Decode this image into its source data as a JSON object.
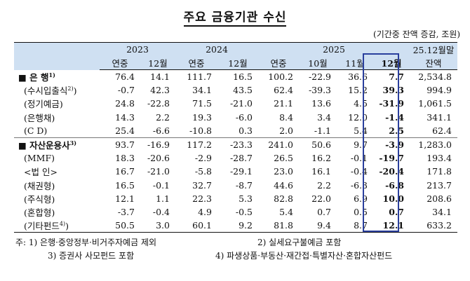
{
  "title": "주요 금융기관 수신",
  "unit": "(기간중 잔액 증감, 조원)",
  "header": {
    "years": [
      {
        "label": "2023",
        "span": 2
      },
      {
        "label": "2024",
        "span": 2
      },
      {
        "label": "2025",
        "span": 4
      },
      {
        "label": "25.12월말",
        "span": 1
      }
    ],
    "sub": [
      "연중",
      "12월",
      "연중",
      "12월",
      "연중",
      "10월",
      "11월",
      "12월",
      "잔액"
    ]
  },
  "rows": [
    {
      "label": "■ 은  행",
      "sup": "1)",
      "bold": true,
      "values": [
        "76.4",
        "14.1",
        "111.7",
        "16.5",
        "100.2",
        "-22.9",
        "36.6",
        "7.7",
        "2,534.8"
      ]
    },
    {
      "label": "(수시입출식",
      "sup": "2)",
      "suffix": ")",
      "values": [
        "-0.7",
        "42.3",
        "34.1",
        "43.5",
        "62.4",
        "-39.3",
        "15.2",
        "39.3",
        "994.9"
      ]
    },
    {
      "label": "(정기예금)",
      "values": [
        "24.8",
        "-22.8",
        "71.5",
        "-21.0",
        "21.1",
        "13.6",
        "4.5",
        "-31.9",
        "1,061.5"
      ]
    },
    {
      "label": "(은행채)",
      "values": [
        "14.3",
        "2.2",
        "19.3",
        "-6.0",
        "8.4",
        "3.4",
        "12.0",
        "-1.4",
        "341.1"
      ]
    },
    {
      "label": "(C  D)",
      "values": [
        "25.4",
        "-6.6",
        "-10.8",
        "0.3",
        "2.0",
        "-1.1",
        "5.4",
        "2.5",
        "62.4"
      ]
    },
    {
      "label": "■ 자산운용사",
      "sup": "3)",
      "bold": true,
      "values": [
        "93.7",
        "-16.9",
        "117.2",
        "-23.3",
        "241.0",
        "50.6",
        "9.7",
        "-3.9",
        "1,283.0"
      ]
    },
    {
      "label": "(MMF)",
      "values": [
        "18.3",
        "-20.6",
        "-2.9",
        "-28.7",
        "26.5",
        "16.2",
        "-0.1",
        "-19.7",
        "193.4"
      ]
    },
    {
      "label": " <법  인>",
      "values": [
        "16.7",
        "-21.0",
        "-5.8",
        "-29.1",
        "23.0",
        "16.1",
        "-0.4",
        "-20.4",
        "171.8"
      ]
    },
    {
      "label": "(채권형)",
      "values": [
        "16.5",
        "-0.1",
        "32.7",
        "-8.7",
        "44.6",
        "2.2",
        "-6.3",
        "-6.8",
        "213.7"
      ]
    },
    {
      "label": "(주식형)",
      "values": [
        "12.1",
        "1.1",
        "22.3",
        "5.3",
        "82.8",
        "22.0",
        "6.9",
        "10.0",
        "208.6"
      ]
    },
    {
      "label": "(혼합형)",
      "values": [
        "-3.7",
        "-0.4",
        "4.9",
        "-0.5",
        "5.4",
        "0.7",
        "0.5",
        "0.7",
        "34.1"
      ]
    },
    {
      "label": "(기타펀드",
      "sup": "4)",
      "suffix": ")",
      "values": [
        "50.5",
        "3.0",
        "60.1",
        "9.2",
        "81.8",
        "9.4",
        "8.7",
        "12.1",
        "633.2"
      ]
    }
  ],
  "notes": {
    "n1": "주: 1) 은행·중앙정부·비거주자예금 제외",
    "n2": "2) 실세요구불예금 포함",
    "n3": "3) 증권사 사모펀드 포함",
    "n4": "4) 파생상품·부동산·재간접·특별자산·혼합자산펀드"
  }
}
